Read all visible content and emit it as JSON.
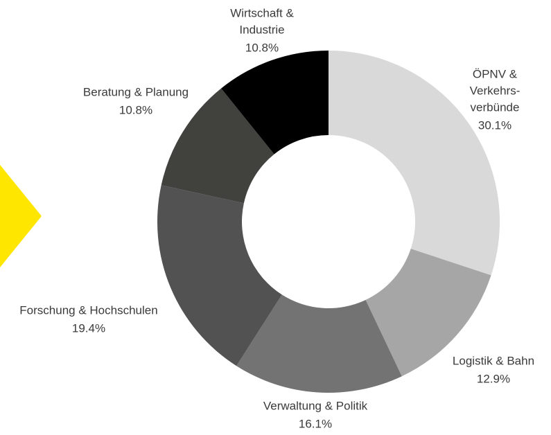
{
  "chart_data": {
    "type": "donut",
    "categories": [
      [
        "ÖPNV &",
        "Verkehrs-",
        "verbünde"
      ],
      [
        "Logistik & Bahn"
      ],
      [
        "Verwaltung & Politik"
      ],
      [
        "Forschung & Hochschulen"
      ],
      [
        "Beratung & Planung"
      ],
      [
        "Wirtschaft &",
        "Industrie"
      ]
    ],
    "values": [
      30.1,
      12.9,
      16.1,
      19.4,
      10.8,
      10.8
    ],
    "value_labels": [
      "30.1%",
      "12.9%",
      "16.1%",
      "19.4%",
      "10.8%",
      "10.8%"
    ],
    "colors": [
      "#d9d9d9",
      "#a6a6a6",
      "#737373",
      "#525252",
      "#41413e",
      "#000000"
    ]
  }
}
